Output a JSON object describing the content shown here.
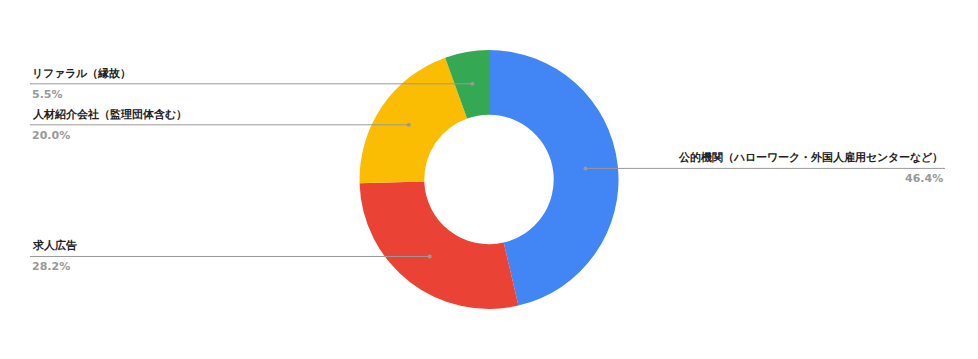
{
  "chart_data": {
    "type": "donut",
    "categories": [
      "公的機関（ハローワーク・外国人雇用センターなど）",
      "求人広告",
      "人材紹介会社（監理団体含む）",
      "リファラル（縁故）"
    ],
    "values": [
      46.4,
      28.2,
      20.0,
      5.5
    ],
    "value_labels": [
      "46.4%",
      "28.2%",
      "20.0%",
      "5.5%"
    ],
    "colors": [
      "#4285f4",
      "#ea4335",
      "#fbbc04",
      "#34a853"
    ],
    "data_labels": true
  }
}
